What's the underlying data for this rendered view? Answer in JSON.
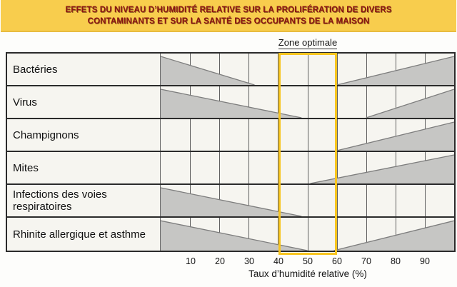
{
  "banner": {
    "line1": "EFFETS DU NIVEAU D’HUMIDITÉ RELATIVE SUR LA PROLIFÉRATION DE DIVERS",
    "line2": "CONTAMINANTS ET SUR LA SANTÉ DES OCCUPANTS DE LA MAISON"
  },
  "optimal_zone": {
    "label": "Zone optimale",
    "from_pct": 40,
    "to_pct": 60
  },
  "axis": {
    "title": "Taux d’humidité relative (%)",
    "ticks": [
      10,
      20,
      30,
      40,
      50,
      60,
      70,
      80,
      90
    ],
    "range": [
      0,
      100
    ]
  },
  "chart_data": {
    "type": "area",
    "title": "Effets du niveau d’humidité relative sur la prolifération de divers contaminants et sur la santé des occupants de la maison",
    "xlabel": "Taux d’humidité relative (%)",
    "xlim": [
      0,
      100
    ],
    "grid": true,
    "optimal_zone": [
      40,
      60
    ],
    "note": "Each row shows wedge-shaped severity bands: 'decrease' = hazard tapering from max at low humidity down to zero; 'increase' = hazard growing from zero up to max at high humidity. Values are % relative humidity.",
    "rows": [
      {
        "label": "Bactéries",
        "decrease": [
          0,
          32
        ],
        "increase": [
          60,
          100
        ]
      },
      {
        "label": "Virus",
        "decrease": [
          0,
          48
        ],
        "increase": [
          70,
          100
        ]
      },
      {
        "label": "Champignons",
        "decrease": null,
        "increase": [
          60,
          100
        ]
      },
      {
        "label": "Mites",
        "decrease": null,
        "increase": [
          51,
          100
        ]
      },
      {
        "label": "Infections des voies respiratoires",
        "decrease": [
          0,
          48
        ],
        "increase": null
      },
      {
        "label": "Rhinite allergique et asthme",
        "decrease": [
          0,
          50
        ],
        "increase": [
          59,
          100
        ]
      }
    ]
  },
  "theme": {
    "page_bg": "#FDFDFB",
    "banner_bg": "#F8CD4D",
    "banner_text": "#8B1411",
    "zone_border": "#F8C51F",
    "tri_fill": "#C6C6C4",
    "tri_edge": "#7D7D7D",
    "grid_line": "#5F5F5F",
    "border_dark": "#2B2B2B",
    "cell_bg": "#F6F5F0"
  }
}
